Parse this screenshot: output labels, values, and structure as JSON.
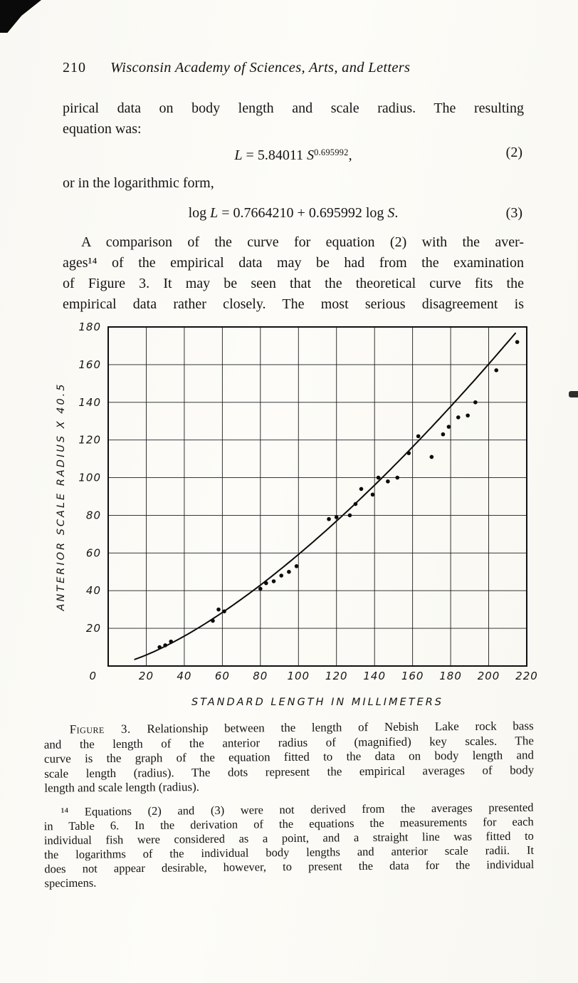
{
  "page": {
    "number": "210",
    "journal": "Wisconsin Academy of Sciences, Arts, and Letters"
  },
  "body": {
    "para1": [
      "pirical data on body length and scale radius.  The resulting",
      "equation was:"
    ],
    "eq2": {
      "var1": "L",
      "mid": " = 5.84011 ",
      "base": "S",
      "sup": "0.695992",
      "tail": ",",
      "num": "(2)"
    },
    "connector": "or in the logarithmic form,",
    "eq3": {
      "pre": "log ",
      "var1": "L",
      "mid": " = 0.7664210 + 0.695992 log ",
      "var2": "S",
      "tail": ".",
      "num": "(3)"
    },
    "para2": [
      "A comparison of the curve for equation (2) with the aver-",
      "ages¹⁴ of the empirical data may be had from the examination",
      "of Figure 3.  It may be seen that the theoretical curve fits the",
      "empirical data rather closely.  The most serious disagreement is"
    ]
  },
  "chart_data": {
    "type": "scatter",
    "title": "",
    "xlabel": "STANDARD LENGTH IN MILLIMETERS",
    "ylabel": "ANTERIOR SCALE RADIUS X 40.5",
    "xlim": [
      0,
      220
    ],
    "ylim": [
      0,
      180
    ],
    "xticks": [
      20,
      40,
      60,
      80,
      100,
      120,
      140,
      160,
      180,
      200,
      220
    ],
    "yticks": [
      20,
      40,
      60,
      80,
      100,
      120,
      140,
      160,
      180
    ],
    "origin_label": "0",
    "grid": true,
    "legend": null,
    "points": [
      [
        27,
        10
      ],
      [
        30,
        11
      ],
      [
        33,
        13
      ],
      [
        55,
        24
      ],
      [
        58,
        30
      ],
      [
        61,
        29
      ],
      [
        80,
        41
      ],
      [
        83,
        44
      ],
      [
        87,
        45
      ],
      [
        91,
        48
      ],
      [
        95,
        50
      ],
      [
        99,
        53
      ],
      [
        116,
        78
      ],
      [
        120,
        79
      ],
      [
        127,
        80
      ],
      [
        130,
        86
      ],
      [
        133,
        94
      ],
      [
        139,
        91
      ],
      [
        142,
        100
      ],
      [
        147,
        98
      ],
      [
        152,
        100
      ],
      [
        158,
        113
      ],
      [
        163,
        122
      ],
      [
        170,
        111
      ],
      [
        176,
        123
      ],
      [
        179,
        127
      ],
      [
        184,
        132
      ],
      [
        189,
        133
      ],
      [
        193,
        140
      ],
      [
        204,
        157
      ],
      [
        215,
        172
      ]
    ],
    "curve": {
      "equation_label": "L = 5.84011 S^0.695992 (fitted; plotted as S vs L)",
      "coef": 5.84011,
      "exponent": 0.695992,
      "x_range": [
        14,
        216
      ]
    }
  },
  "caption": {
    "label": "Figure 3.",
    "lines": [
      " Relationship between the length of Nebish Lake rock bass",
      "and the length of the anterior radius of (magnified) key scales. The",
      "curve is the graph of the equation fitted to the data on body length and",
      "scale length (radius). The dots represent the empirical averages of body",
      "length and scale length (radius)."
    ]
  },
  "footnote": [
    "¹⁴ Equations (2) and (3) were not derived from the averages presented",
    "in Table 6. In the derivation of the equations the measurements for each",
    "individual fish were considered as a point, and a straight line was fitted to",
    "the logarithms of the individual body lengths and anterior scale radii. It",
    "does not appear desirable, however, to present the data for the individual",
    "specimens."
  ]
}
